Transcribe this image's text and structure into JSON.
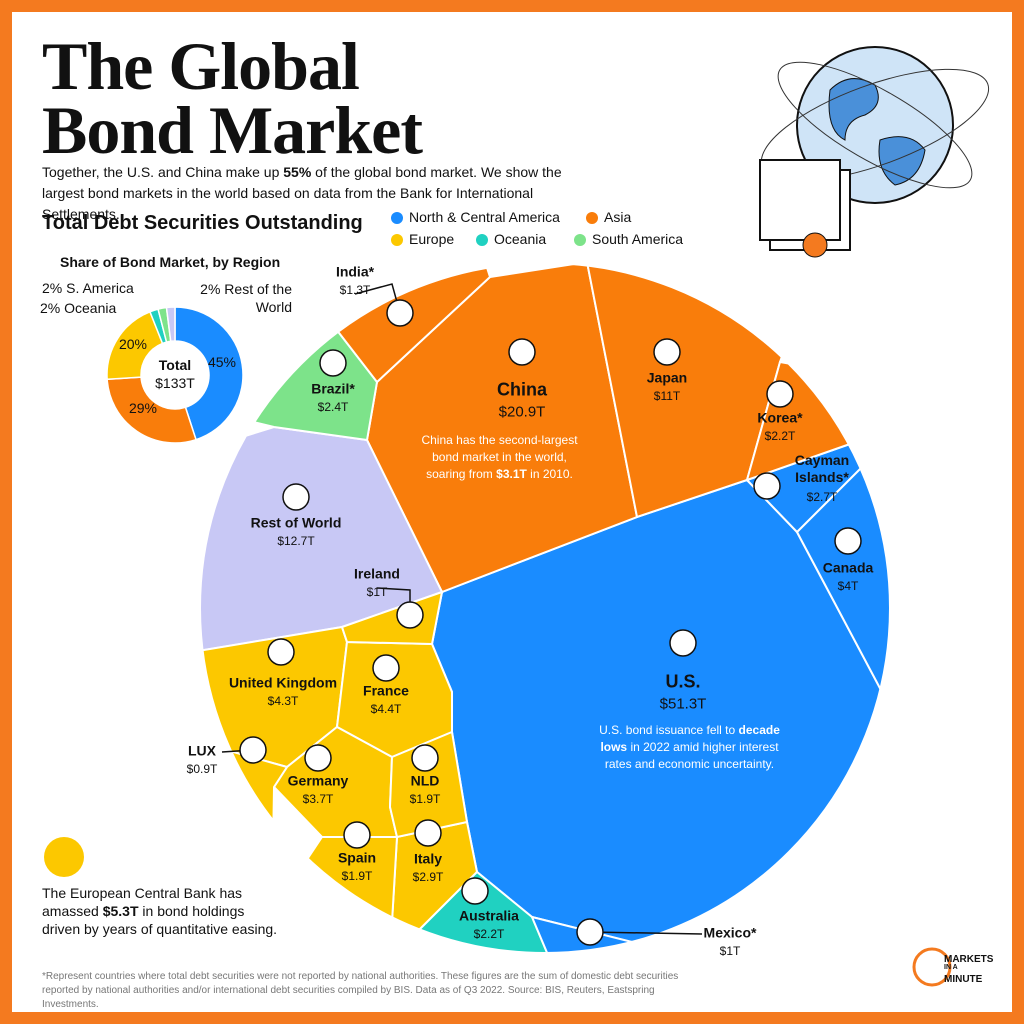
{
  "header": {
    "title": "The Global Bond Market",
    "intro": [
      "Together, the U.S. and China make up ",
      "55%",
      " of the global bond market. We show the largest bond markets in the world based on data from the Bank for International Settlements."
    ]
  },
  "legend": [
    {
      "name": "North & Central America",
      "color": "#1a8cff"
    },
    {
      "name": "Asia",
      "color": "#f97d0b"
    },
    {
      "name": "Europe",
      "color": "#fcc800"
    },
    {
      "name": "Oceania",
      "color": "#20d1c1"
    },
    {
      "name": "South America",
      "color": "#7de38a"
    }
  ],
  "chart_data": [
    {
      "type": "pie",
      "title": "Share of Bond Market, by Region",
      "center_label": "Total",
      "total": "$133T",
      "values": [
        45,
        29,
        20,
        2,
        2,
        2
      ],
      "value_labels": [
        "45%",
        "29%",
        "20%",
        "2% Oceania",
        "2% S. America",
        "2% Rest of the World"
      ],
      "colors": [
        "#1a8cff",
        "#f97d0b",
        "#fcc800",
        "#20d1c1",
        "#7de38a",
        "#c8c8f5"
      ]
    },
    {
      "type": "voronoi-treemap",
      "title": "Total Debt Securities Outstanding",
      "categories": [
        "U.S.",
        "China",
        "Japan",
        "Rest of World",
        "United Kingdom",
        "France",
        "Canada",
        "Germany",
        "Italy",
        "Cayman Islands*",
        "Brazil*",
        "Korea*",
        "Australia",
        "NLD",
        "Spain",
        "India*",
        "Ireland",
        "Mexico*",
        "LUX"
      ],
      "values": [
        51.3,
        20.9,
        11,
        12.7,
        4.3,
        4.4,
        4,
        3.7,
        2.9,
        2.7,
        2.4,
        2.2,
        2.2,
        1.9,
        1.9,
        1.3,
        1,
        1,
        0.9
      ],
      "value_labels": [
        "$51.3T",
        "$20.9T",
        "$11T",
        "$12.7T",
        "$4.3T",
        "$4.4T",
        "$4T",
        "$3.7T",
        "$2.9T",
        "$2.7T",
        "$2.4T",
        "$2.2T",
        "$2.2T",
        "$1.9T",
        "$1.9T",
        "$1.3T",
        "$1T",
        "$1T",
        "$0.9T"
      ],
      "colors": [
        "#1a8cff",
        "#f97d0b",
        "#f97d0b",
        "#c8c8f5",
        "#fcc800",
        "#fcc800",
        "#1a8cff",
        "#fcc800",
        "#fcc800",
        "#1a8cff",
        "#7de38a",
        "#f97d0b",
        "#20d1c1",
        "#fcc800",
        "#fcc800",
        "#f97d0b",
        "#fcc800",
        "#1a8cff",
        "#fcc800"
      ]
    }
  ],
  "notes": {
    "china": [
      "China has the second-largest bond market in the world, soaring from ",
      "$3.1T",
      " in 2010."
    ],
    "us": [
      "U.S. bond issuance fell to ",
      "decade lows",
      " in 2022 amid higher interest rates and economic uncertainty."
    ],
    "ecb": [
      "The European Central Bank has amassed ",
      "$5.3T",
      " in bond holdings driven by years of quantitative easing."
    ]
  },
  "footnote": "*Represent countries where total debt securities were not reported by national authorities. These figures are the sum of domestic debt securities reported by national authorities and/or international debt securities compiled by BIS. Data as of Q3 2022. Source: BIS, Reuters, Eastspring Investments.",
  "brand": [
    "MARKETS",
    "IN A",
    "MINUTE"
  ]
}
